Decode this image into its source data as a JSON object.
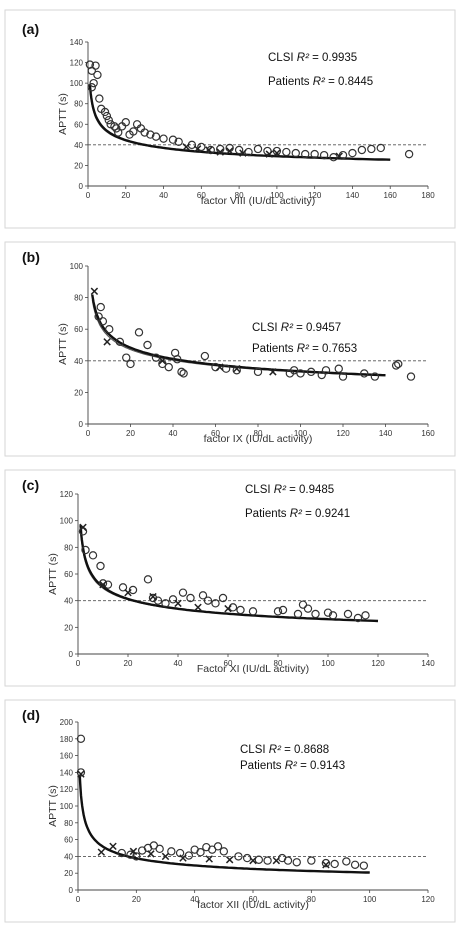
{
  "chart_data": [
    {
      "panel": "(a)",
      "type": "scatter",
      "xlabel": "factor VIII (IU/dL activity)",
      "ylabel": "APTT (s)",
      "xlim": [
        0,
        180
      ],
      "ylim": [
        0,
        140
      ],
      "xticks": [
        0,
        20,
        40,
        60,
        80,
        100,
        120,
        140,
        160,
        180
      ],
      "yticks": [
        0,
        20,
        40,
        60,
        80,
        100,
        120,
        140
      ],
      "reference_y": 40,
      "annotations": [
        {
          "prefix": "CLSI ",
          "italic": "R²",
          "suffix": " = 0.9935"
        },
        {
          "prefix": "Patients ",
          "italic": "R²",
          "suffix": " = 0.8445"
        }
      ],
      "fit": {
        "a": 99.5,
        "b": 0.268,
        "x0": 1
      },
      "series": [
        {
          "marker": "circle",
          "points": [
            [
              1,
              118
            ],
            [
              2,
              112
            ],
            [
              4,
              117
            ],
            [
              5,
              108
            ],
            [
              3,
              100
            ],
            [
              2,
              96
            ],
            [
              6,
              85
            ],
            [
              7,
              75
            ],
            [
              9,
              72
            ],
            [
              10,
              68
            ],
            [
              11,
              64
            ],
            [
              12,
              60
            ],
            [
              14,
              58
            ],
            [
              15,
              56
            ],
            [
              16,
              52
            ],
            [
              18,
              58
            ],
            [
              20,
              62
            ],
            [
              22,
              50
            ],
            [
              24,
              53
            ],
            [
              26,
              60
            ],
            [
              28,
              56
            ],
            [
              30,
              52
            ],
            [
              33,
              50
            ],
            [
              36,
              48
            ],
            [
              40,
              46
            ],
            [
              45,
              45
            ],
            [
              48,
              43
            ],
            [
              55,
              40
            ],
            [
              60,
              38
            ],
            [
              65,
              35
            ],
            [
              70,
              36
            ],
            [
              75,
              37
            ],
            [
              80,
              35
            ],
            [
              85,
              33
            ],
            [
              90,
              36
            ],
            [
              95,
              34
            ],
            [
              100,
              34
            ],
            [
              105,
              33
            ],
            [
              110,
              32
            ],
            [
              115,
              31
            ],
            [
              120,
              31
            ],
            [
              125,
              30
            ],
            [
              130,
              28
            ],
            [
              135,
              30
            ],
            [
              140,
              32
            ],
            [
              145,
              35
            ],
            [
              150,
              36
            ],
            [
              155,
              37
            ],
            [
              170,
              31
            ]
          ]
        },
        {
          "marker": "x",
          "points": [
            [
              52,
              38
            ],
            [
              58,
              36
            ],
            [
              64,
              35
            ],
            [
              70,
              33
            ],
            [
              75,
              34
            ],
            [
              82,
              32
            ],
            [
              96,
              31
            ],
            [
              100,
              32
            ],
            [
              133,
              29
            ]
          ]
        }
      ]
    },
    {
      "panel": "(b)",
      "type": "scatter",
      "xlabel": "factor IX (IU/dL activity)",
      "ylabel": "APTT (s)",
      "xlim": [
        0,
        160
      ],
      "ylim": [
        0,
        100
      ],
      "xticks": [
        0,
        20,
        40,
        60,
        80,
        100,
        120,
        140,
        160
      ],
      "yticks": [
        0,
        20,
        40,
        60,
        80,
        100
      ],
      "reference_y": 40,
      "annotations": [
        {
          "prefix": "CLSI ",
          "italic": "R²",
          "suffix": " = 0.9457"
        },
        {
          "prefix": "Patients ",
          "italic": "R²",
          "suffix": " = 0.7653"
        }
      ],
      "fit": {
        "a": 82,
        "b": 0.23,
        "x0": 2
      },
      "series": [
        {
          "marker": "circle",
          "points": [
            [
              5,
              68
            ],
            [
              6,
              74
            ],
            [
              7,
              65
            ],
            [
              10,
              60
            ],
            [
              15,
              52
            ],
            [
              18,
              42
            ],
            [
              20,
              38
            ],
            [
              24,
              58
            ],
            [
              28,
              50
            ],
            [
              32,
              42
            ],
            [
              35,
              38
            ],
            [
              38,
              36
            ],
            [
              41,
              45
            ],
            [
              42,
              41
            ],
            [
              44,
              33
            ],
            [
              45,
              32
            ],
            [
              55,
              43
            ],
            [
              60,
              36
            ],
            [
              65,
              35
            ],
            [
              70,
              34
            ],
            [
              80,
              33
            ],
            [
              95,
              32
            ],
            [
              97,
              34
            ],
            [
              100,
              32
            ],
            [
              105,
              33
            ],
            [
              110,
              31
            ],
            [
              112,
              34
            ],
            [
              118,
              35
            ],
            [
              120,
              30
            ],
            [
              130,
              32
            ],
            [
              135,
              30
            ],
            [
              145,
              37
            ],
            [
              146,
              38
            ],
            [
              152,
              30
            ]
          ]
        },
        {
          "marker": "x",
          "points": [
            [
              3,
              84
            ],
            [
              9,
              52
            ],
            [
              35,
              40
            ],
            [
              62,
              36
            ],
            [
              70,
              35
            ],
            [
              87,
              33
            ]
          ]
        }
      ]
    },
    {
      "panel": "(c)",
      "type": "scatter",
      "xlabel": "Factor XI (IU/dL activity)",
      "ylabel": "APTT (s)",
      "xlim": [
        0,
        140
      ],
      "ylim": [
        0,
        120
      ],
      "xticks": [
        0,
        20,
        40,
        60,
        80,
        100,
        120,
        140
      ],
      "yticks": [
        0,
        20,
        40,
        60,
        80,
        100,
        120
      ],
      "reference_y": 40,
      "annotations": [
        {
          "prefix": "CLSI ",
          "italic": "R²",
          "suffix": " = 0.9485"
        },
        {
          "prefix": "Patients ",
          "italic": "R²",
          "suffix": " = 0.9241"
        }
      ],
      "fit": {
        "a": 97,
        "b": 0.285,
        "x0": 1
      },
      "series": [
        {
          "marker": "circle",
          "points": [
            [
              2,
              92
            ],
            [
              3,
              78
            ],
            [
              6,
              74
            ],
            [
              9,
              66
            ],
            [
              10,
              53
            ],
            [
              12,
              52
            ],
            [
              18,
              50
            ],
            [
              22,
              48
            ],
            [
              28,
              56
            ],
            [
              30,
              42
            ],
            [
              32,
              40
            ],
            [
              35,
              38
            ],
            [
              38,
              41
            ],
            [
              42,
              46
            ],
            [
              45,
              42
            ],
            [
              50,
              44
            ],
            [
              52,
              40
            ],
            [
              55,
              38
            ],
            [
              58,
              42
            ],
            [
              62,
              35
            ],
            [
              65,
              33
            ],
            [
              70,
              32
            ],
            [
              80,
              32
            ],
            [
              82,
              33
            ],
            [
              88,
              30
            ],
            [
              90,
              37
            ],
            [
              92,
              34
            ],
            [
              95,
              30
            ],
            [
              100,
              31
            ],
            [
              102,
              29
            ],
            [
              108,
              30
            ],
            [
              112,
              27
            ],
            [
              115,
              29
            ]
          ]
        },
        {
          "marker": "x",
          "points": [
            [
              2,
              95
            ],
            [
              10,
              52
            ],
            [
              20,
              46
            ],
            [
              30,
              43
            ],
            [
              40,
              38
            ],
            [
              48,
              35
            ],
            [
              60,
              34
            ]
          ]
        }
      ]
    },
    {
      "panel": "(d)",
      "type": "scatter",
      "xlabel": "factor XII (IU/dL activity)",
      "ylabel": "APTT (s)",
      "xlim": [
        0,
        120
      ],
      "ylim": [
        0,
        200
      ],
      "xticks": [
        0,
        20,
        40,
        60,
        80,
        100,
        120
      ],
      "yticks": [
        0,
        20,
        40,
        60,
        80,
        100,
        120,
        140,
        160,
        180,
        200
      ],
      "reference_y": 40,
      "annotations": [
        {
          "prefix": "CLSI ",
          "italic": "R²",
          "suffix": " = 0.8688"
        },
        {
          "prefix": "Patients ",
          "italic": "R²",
          "suffix": " = 0.9143"
        }
      ],
      "fit": {
        "a": 138,
        "b": 0.37,
        "x0": 0.6
      },
      "series": [
        {
          "marker": "circle",
          "points": [
            [
              1,
              180
            ],
            [
              1,
              140
            ],
            [
              15,
              44
            ],
            [
              18,
              42
            ],
            [
              20,
              40
            ],
            [
              22,
              47
            ],
            [
              24,
              50
            ],
            [
              26,
              53
            ],
            [
              28,
              49
            ],
            [
              32,
              46
            ],
            [
              35,
              44
            ],
            [
              38,
              41
            ],
            [
              40,
              48
            ],
            [
              42,
              45
            ],
            [
              44,
              51
            ],
            [
              46,
              48
            ],
            [
              48,
              52
            ],
            [
              50,
              46
            ],
            [
              55,
              40
            ],
            [
              58,
              38
            ],
            [
              62,
              36
            ],
            [
              65,
              35
            ],
            [
              70,
              38
            ],
            [
              72,
              35
            ],
            [
              75,
              33
            ],
            [
              80,
              35
            ],
            [
              85,
              32
            ],
            [
              88,
              31
            ],
            [
              92,
              34
            ],
            [
              95,
              30
            ],
            [
              98,
              29
            ]
          ]
        },
        {
          "marker": "x",
          "points": [
            [
              1,
              138
            ],
            [
              8,
              45
            ],
            [
              12,
              52
            ],
            [
              19,
              46
            ],
            [
              25,
              43
            ],
            [
              30,
              40
            ],
            [
              36,
              38
            ],
            [
              45,
              37
            ],
            [
              52,
              36
            ],
            [
              60,
              35
            ],
            [
              68,
              35
            ],
            [
              85,
              30
            ]
          ]
        }
      ]
    }
  ]
}
